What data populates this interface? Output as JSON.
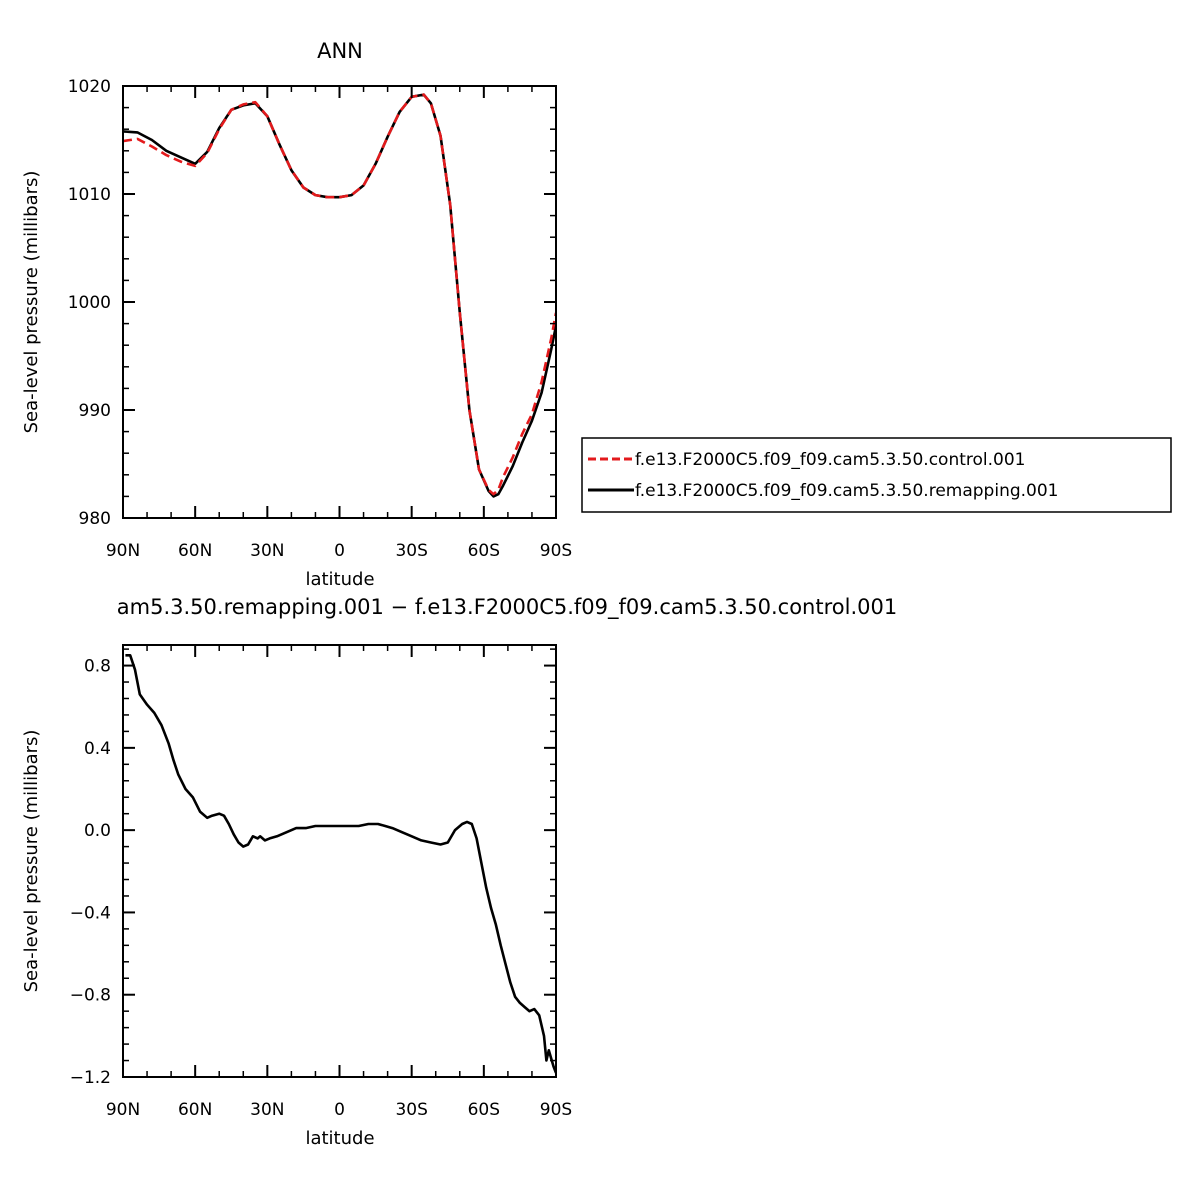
{
  "chart_data": [
    {
      "type": "line",
      "title": "ANN",
      "xlabel": "latitude",
      "ylabel": "Sea-level pressure (millibars)",
      "xlim": [
        90,
        -90
      ],
      "ylim": [
        980,
        1020
      ],
      "x_ticks": [
        90,
        60,
        30,
        0,
        -30,
        -60,
        -90
      ],
      "x_tick_labels": [
        "90N",
        "60N",
        "30N",
        "0",
        "30S",
        "60S",
        "90S"
      ],
      "y_ticks": [
        980,
        990,
        1000,
        1010,
        1020
      ],
      "y_tick_labels": [
        "980",
        "990",
        "1000",
        "1010",
        "1020"
      ],
      "grid": false,
      "legend": "right",
      "x": [
        90,
        84,
        78,
        72,
        66,
        60,
        55,
        50,
        45,
        40,
        35,
        30,
        25,
        20,
        15,
        10,
        5,
        0,
        -5,
        -10,
        -15,
        -20,
        -25,
        -30,
        -35,
        -38,
        -42,
        -46,
        -50,
        -54,
        -58,
        -62,
        -64,
        -66,
        -68,
        -72,
        -76,
        -80,
        -84,
        -88,
        -90
      ],
      "series": [
        {
          "name": "f.e13.F2000C5.f09_f09.cam5.3.50.control.001",
          "color": "#e31a1c",
          "dash": "dashed",
          "values": [
            1014.9,
            1015.1,
            1014.4,
            1013.6,
            1013.0,
            1012.6,
            1013.8,
            1016.0,
            1017.8,
            1018.3,
            1018.5,
            1017.2,
            1014.6,
            1012.2,
            1010.6,
            1009.9,
            1009.7,
            1009.7,
            1009.9,
            1010.8,
            1012.8,
            1015.3,
            1017.6,
            1019.0,
            1019.2,
            1018.4,
            1015.4,
            1009.0,
            999.0,
            990.0,
            984.5,
            982.6,
            982.2,
            982.6,
            983.8,
            985.6,
            987.8,
            989.6,
            992.6,
            996.6,
            999.0
          ]
        },
        {
          "name": "f.e13.F2000C5.f09_f09.cam5.3.50.remapping.001",
          "color": "#000000",
          "dash": "solid",
          "values": [
            1015.8,
            1015.7,
            1015.0,
            1014.0,
            1013.4,
            1012.8,
            1013.9,
            1016.1,
            1017.8,
            1018.2,
            1018.4,
            1017.2,
            1014.6,
            1012.2,
            1010.6,
            1009.9,
            1009.7,
            1009.7,
            1009.9,
            1010.8,
            1012.8,
            1015.3,
            1017.6,
            1019.0,
            1019.2,
            1018.4,
            1015.4,
            1009.0,
            999.0,
            990.0,
            984.5,
            982.5,
            982.0,
            982.2,
            983.0,
            984.8,
            987.0,
            989.0,
            991.6,
            995.6,
            997.8
          ]
        }
      ]
    },
    {
      "type": "line",
      "title": "am5.3.50.remapping.001 − f.e13.F2000C5.f09_f09.cam5.3.50.control.001",
      "xlabel": "latitude",
      "ylabel": "Sea-level pressure (millibars)",
      "xlim": [
        90,
        -90
      ],
      "ylim": [
        -1.2,
        0.9
      ],
      "x_ticks": [
        90,
        60,
        30,
        0,
        -30,
        -60,
        -90
      ],
      "x_tick_labels": [
        "90N",
        "60N",
        "30N",
        "0",
        "30S",
        "60S",
        "90S"
      ],
      "y_ticks": [
        -1.2,
        -0.8,
        -0.4,
        0.0,
        0.4,
        0.8
      ],
      "y_tick_labels": [
        "−1.2",
        "−0.8",
        "−0.4",
        "0.0",
        "0.4",
        "0.8"
      ],
      "grid": false,
      "x": [
        89,
        87,
        85,
        83,
        80,
        77,
        74,
        71,
        69,
        67,
        64,
        61,
        58,
        55,
        53,
        50,
        48,
        46,
        44,
        42,
        40,
        38,
        36,
        34,
        33,
        31,
        29,
        26,
        22,
        18,
        14,
        10,
        6,
        2,
        0,
        -4,
        -8,
        -12,
        -16,
        -19,
        -22,
        -26,
        -30,
        -34,
        -38,
        -42,
        -45,
        -48,
        -51,
        -53,
        -55,
        -57,
        -59,
        -61,
        -63,
        -65,
        -67,
        -69,
        -71,
        -73,
        -75,
        -77,
        -79,
        -81,
        -83,
        -85,
        -86,
        -87,
        -88,
        -89,
        -90
      ],
      "series": [
        {
          "color": "#000000",
          "values": [
            0.85,
            0.85,
            0.78,
            0.66,
            0.61,
            0.57,
            0.51,
            0.42,
            0.34,
            0.27,
            0.2,
            0.16,
            0.09,
            0.06,
            0.07,
            0.08,
            0.07,
            0.03,
            -0.02,
            -0.06,
            -0.08,
            -0.07,
            -0.03,
            -0.04,
            -0.03,
            -0.05,
            -0.04,
            -0.03,
            -0.01,
            0.01,
            0.01,
            0.02,
            0.02,
            0.02,
            0.02,
            0.02,
            0.02,
            0.03,
            0.03,
            0.02,
            0.01,
            -0.01,
            -0.03,
            -0.05,
            -0.06,
            -0.07,
            -0.06,
            0.0,
            0.03,
            0.04,
            0.03,
            -0.04,
            -0.16,
            -0.28,
            -0.38,
            -0.46,
            -0.56,
            -0.65,
            -0.74,
            -0.81,
            -0.84,
            -0.86,
            -0.88,
            -0.87,
            -0.9,
            -1.0,
            -1.12,
            -1.07,
            -1.11,
            -1.15,
            -1.18
          ]
        }
      ]
    }
  ]
}
